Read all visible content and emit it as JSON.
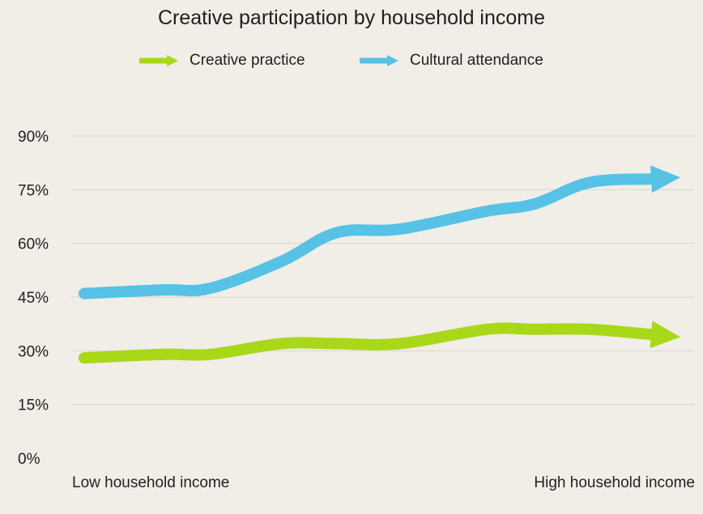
{
  "chart_data": {
    "type": "line",
    "title": "Creative participation by household income",
    "xlabel": "",
    "ylabel": "",
    "x_tick_labels": {
      "low": "Low household income",
      "high": "High household income"
    },
    "ylim": [
      0,
      90
    ],
    "yticks": [
      0,
      15,
      30,
      45,
      60,
      75,
      90
    ],
    "ytick_labels": [
      "0%",
      "15%",
      "30%",
      "45%",
      "60%",
      "75%",
      "90%"
    ],
    "grid": true,
    "legend_position": "top-center",
    "x": [
      1,
      2,
      3,
      4,
      5,
      6,
      7,
      8
    ],
    "series": [
      {
        "name": "Creative practice",
        "color": "#a8d818",
        "values": [
          28,
          29,
          29,
          32,
          32,
          32,
          36,
          36,
          36,
          34.5
        ],
        "x": [
          1,
          2,
          2.6,
          3.5,
          4.2,
          5,
          6.1,
          6.7,
          7.4,
          8.2
        ]
      },
      {
        "name": "Cultural attendance",
        "color": "#55c2e6",
        "values": [
          46,
          47,
          47.5,
          55,
          63,
          64,
          69,
          71,
          77,
          78
        ],
        "x": [
          1,
          2,
          2.6,
          3.5,
          4.2,
          5,
          6.1,
          6.7,
          7.4,
          8.2
        ]
      }
    ]
  }
}
